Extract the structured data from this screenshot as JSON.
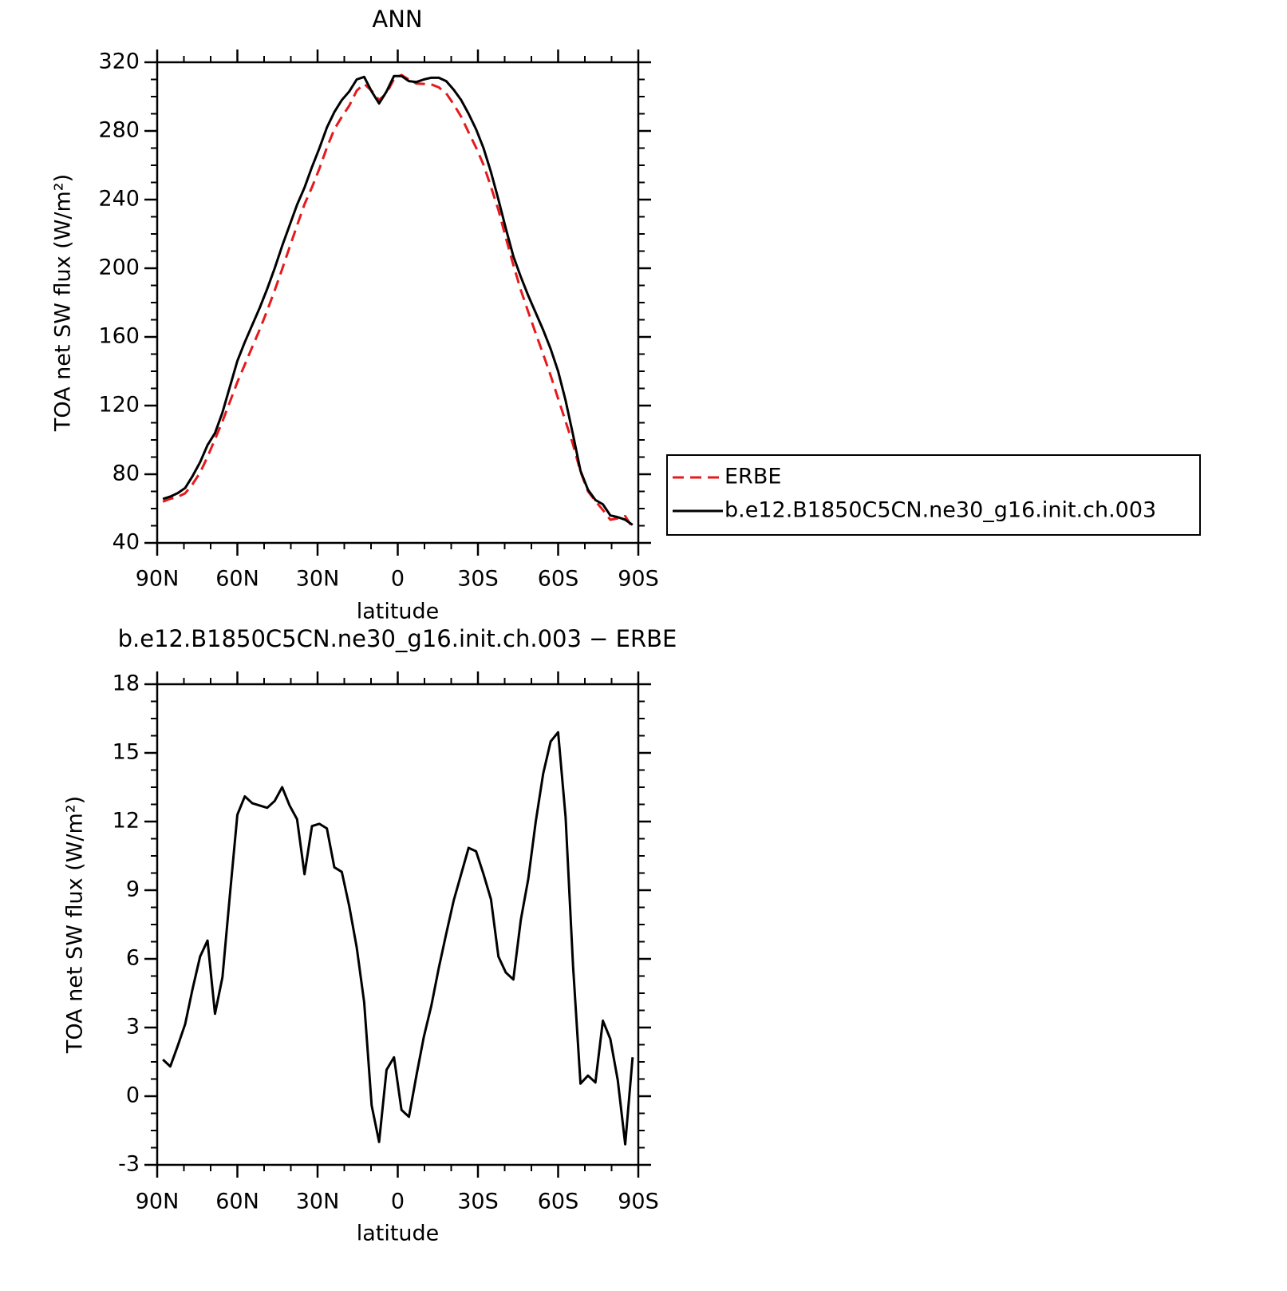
{
  "chart_data": [
    {
      "type": "line",
      "title": "ANN",
      "xlabel": "latitude",
      "ylabel": "TOA net SW flux (W/m²)",
      "x": [
        87.86,
        85.1,
        82.31,
        79.53,
        76.74,
        73.95,
        71.16,
        68.37,
        65.58,
        62.79,
        60.0,
        57.21,
        54.42,
        51.63,
        48.84,
        46.04,
        43.25,
        40.46,
        37.67,
        34.88,
        32.09,
        29.3,
        26.51,
        23.72,
        20.93,
        18.14,
        15.35,
        12.56,
        9.77,
        6.98,
        4.19,
        1.4,
        -1.4,
        -4.19,
        -6.98,
        -9.77,
        -12.56,
        -15.35,
        -18.14,
        -20.93,
        -23.72,
        -26.51,
        -29.3,
        -32.09,
        -34.88,
        -37.67,
        -40.46,
        -43.25,
        -46.04,
        -48.84,
        -51.63,
        -54.42,
        -57.21,
        -60.0,
        -62.79,
        -65.58,
        -68.37,
        -71.16,
        -73.95,
        -76.74,
        -79.53,
        -82.31,
        -85.1,
        -87.86
      ],
      "series": [
        {
          "name": "ERBE",
          "color": "#e41a1c",
          "line_style": "dashed",
          "values": [
            64.0,
            65.7,
            66.8,
            68.9,
            74.3,
            80.9,
            90.2,
            100.4,
            110.8,
            122.2,
            133.7,
            143.9,
            154.2,
            164.3,
            175.4,
            187.1,
            199.5,
            212.3,
            224.9,
            237.3,
            247.2,
            258.1,
            270.3,
            281.0,
            288.2,
            294.7,
            303.5,
            307.4,
            303.4,
            298.0,
            301.9,
            310.3,
            312.6,
            309.9,
            307.6,
            307.4,
            307.1,
            305.4,
            301.9,
            295.5,
            288.3,
            279.2,
            270.3,
            260.3,
            247.4,
            233.9,
            217.6,
            201.9,
            187.3,
            174.5,
            162.0,
            149.9,
            137.5,
            124.1,
            110.8,
            97.3,
            81.5,
            70.1,
            64.4,
            59.2,
            53.5,
            54.3,
            55.6,
            48.8
          ]
        },
        {
          "name": "b.e12.B1850C5CN.ne30_g16.init.ch.003",
          "color": "#000000",
          "line_style": "solid",
          "values": [
            65.6,
            67,
            69,
            72,
            79,
            87,
            97,
            104,
            116,
            131,
            146,
            157,
            167,
            177,
            188,
            200,
            213,
            225,
            237,
            247,
            259,
            270,
            282,
            291,
            298,
            303,
            310,
            311.5,
            303,
            296,
            303,
            312,
            312,
            309,
            308.5,
            310,
            311,
            311,
            309,
            304,
            298,
            290,
            281,
            270,
            256,
            240,
            223,
            207,
            195,
            184,
            174,
            164,
            153,
            140,
            123,
            103,
            82,
            71,
            65,
            62.5,
            56,
            55,
            53.5,
            50.5
          ]
        }
      ],
      "xlim": [
        90,
        -90
      ],
      "xticks": [
        {
          "value": 90,
          "label": "90N"
        },
        {
          "value": 60,
          "label": "60N"
        },
        {
          "value": 30,
          "label": "30N"
        },
        0,
        {
          "value": -30,
          "label": "30S"
        },
        {
          "value": -60,
          "label": "60S"
        },
        {
          "value": -90,
          "label": "90S"
        }
      ],
      "ylim": [
        40,
        320
      ],
      "yticks": [
        40,
        80,
        120,
        160,
        200,
        240,
        280,
        320
      ],
      "legend": "right"
    },
    {
      "type": "line",
      "title": "b.e12.B1850C5CN.ne30_g16.init.ch.003 − ERBE",
      "xlabel": "latitude",
      "ylabel": "TOA net SW flux (W/m²)",
      "x": [
        87.86,
        85.1,
        82.31,
        79.53,
        76.74,
        73.95,
        71.16,
        68.37,
        65.58,
        62.79,
        60.0,
        57.21,
        54.42,
        51.63,
        48.84,
        46.04,
        43.25,
        40.46,
        37.67,
        34.88,
        32.09,
        29.3,
        26.51,
        23.72,
        20.93,
        18.14,
        15.35,
        12.56,
        9.77,
        6.98,
        4.19,
        1.4,
        -1.4,
        -4.19,
        -6.98,
        -9.77,
        -12.56,
        -15.35,
        -18.14,
        -20.93,
        -23.72,
        -26.51,
        -29.3,
        -32.09,
        -34.88,
        -37.67,
        -40.46,
        -43.25,
        -46.04,
        -48.84,
        -51.63,
        -54.42,
        -57.21,
        -60.0,
        -62.79,
        -65.58,
        -68.37,
        -71.16,
        -73.95,
        -76.74,
        -79.53,
        -82.31,
        -85.1,
        -87.86
      ],
      "color": "#000000",
      "values": [
        1.6,
        1.3,
        2.2,
        3.15,
        4.7,
        6.1,
        6.8,
        3.6,
        5.2,
        8.8,
        12.3,
        13.1,
        12.8,
        12.7,
        12.6,
        12.9,
        13.5,
        12.7,
        12.1,
        9.7,
        11.8,
        11.9,
        11.7,
        10.0,
        9.8,
        8.3,
        6.5,
        4.1,
        -0.4,
        -2.0,
        1.15,
        1.7,
        -0.6,
        -0.9,
        0.9,
        2.6,
        3.95,
        5.6,
        7.1,
        8.55,
        9.7,
        10.85,
        10.7,
        9.7,
        8.6,
        6.1,
        5.4,
        5.1,
        7.7,
        9.5,
        12.0,
        14.1,
        15.5,
        15.9,
        12.2,
        5.7,
        0.55,
        0.9,
        0.6,
        3.3,
        2.5,
        0.7,
        -2.1,
        1.7
      ],
      "xlim": [
        90,
        -90
      ],
      "xticks": [
        {
          "value": 90,
          "label": "90N"
        },
        {
          "value": 60,
          "label": "60N"
        },
        {
          "value": 30,
          "label": "30N"
        },
        0,
        {
          "value": -30,
          "label": "30S"
        },
        {
          "value": -60,
          "label": "60S"
        },
        {
          "value": -90,
          "label": "90S"
        }
      ],
      "ylim": [
        -3,
        18
      ],
      "yticks": [
        -3,
        0,
        3,
        6,
        9,
        12,
        15,
        18
      ]
    }
  ]
}
